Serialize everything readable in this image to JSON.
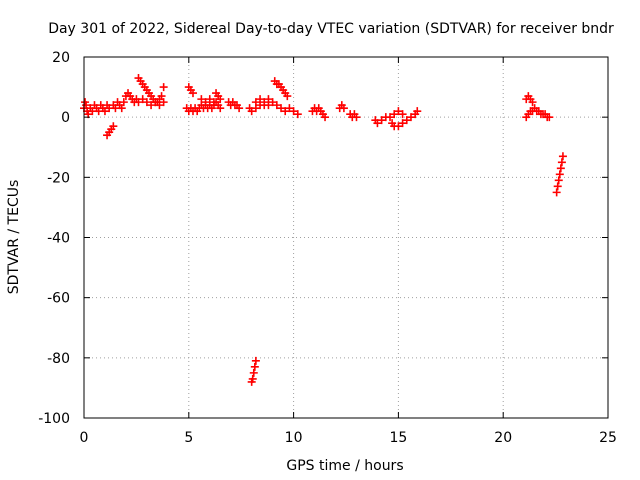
{
  "chart_data": {
    "type": "scatter",
    "title": "Day 301 of 2022, Sidereal Day-to-day VTEC variation (SDTVAR) for receiver bndr",
    "xlabel": "GPS time / hours",
    "ylabel": "SDTVAR / TECUs",
    "xlim": [
      0,
      25
    ],
    "ylim": [
      -100,
      20
    ],
    "xticks": [
      0,
      5,
      10,
      15,
      20,
      25
    ],
    "yticks": [
      -100,
      -80,
      -60,
      -40,
      -20,
      0,
      20
    ],
    "grid": true,
    "marker": "+",
    "marker_color": "#ff0000",
    "series": [
      {
        "name": "SDTVAR",
        "segments": [
          [
            [
              0.0,
              3
            ],
            [
              0.05,
              5
            ],
            [
              0.1,
              4
            ],
            [
              0.15,
              2
            ],
            [
              0.2,
              1
            ],
            [
              0.3,
              3
            ],
            [
              0.4,
              2
            ],
            [
              0.5,
              4
            ],
            [
              0.6,
              3
            ],
            [
              0.7,
              2
            ],
            [
              0.8,
              4
            ],
            [
              0.9,
              3
            ],
            [
              1.0,
              2
            ],
            [
              1.1,
              4
            ],
            [
              1.2,
              3
            ]
          ],
          [
            [
              1.1,
              -6
            ],
            [
              1.2,
              -5
            ],
            [
              1.3,
              -4
            ],
            [
              1.4,
              -3
            ]
          ],
          [
            [
              1.4,
              4
            ],
            [
              1.5,
              3
            ],
            [
              1.6,
              5
            ],
            [
              1.7,
              4
            ],
            [
              1.8,
              3
            ]
          ],
          [
            [
              1.9,
              5
            ],
            [
              2.0,
              7
            ],
            [
              2.1,
              8
            ],
            [
              2.2,
              7
            ],
            [
              2.3,
              6
            ],
            [
              2.4,
              5
            ],
            [
              2.5,
              6
            ]
          ],
          [
            [
              2.6,
              13
            ],
            [
              2.7,
              12
            ],
            [
              2.8,
              11
            ],
            [
              2.9,
              10
            ],
            [
              3.0,
              9
            ],
            [
              3.1,
              8
            ],
            [
              3.2,
              7
            ],
            [
              3.3,
              6
            ],
            [
              3.4,
              5
            ],
            [
              3.5,
              5
            ],
            [
              3.6,
              6
            ],
            [
              3.7,
              7
            ],
            [
              3.8,
              10
            ]
          ],
          [
            [
              2.6,
              5
            ],
            [
              2.8,
              6
            ],
            [
              3.0,
              5
            ],
            [
              3.2,
              4
            ],
            [
              3.4,
              5
            ],
            [
              3.6,
              4
            ],
            [
              3.8,
              5
            ]
          ],
          [
            [
              4.9,
              3
            ],
            [
              5.0,
              2
            ],
            [
              5.1,
              3
            ],
            [
              5.2,
              2
            ],
            [
              5.3,
              3
            ],
            [
              5.4,
              2
            ],
            [
              5.5,
              3
            ],
            [
              5.6,
              4
            ],
            [
              5.7,
              3
            ],
            [
              5.8,
              4
            ],
            [
              5.9,
              3
            ],
            [
              6.0,
              4
            ],
            [
              6.1,
              3
            ],
            [
              6.2,
              4
            ],
            [
              6.3,
              5
            ],
            [
              6.4,
              4
            ],
            [
              6.5,
              3
            ]
          ],
          [
            [
              5.0,
              10
            ],
            [
              5.1,
              9
            ],
            [
              5.2,
              8
            ]
          ],
          [
            [
              5.6,
              6
            ],
            [
              5.8,
              5
            ],
            [
              6.0,
              6
            ],
            [
              6.2,
              5
            ]
          ],
          [
            [
              6.3,
              8
            ],
            [
              6.4,
              7
            ],
            [
              6.5,
              6
            ]
          ],
          [
            [
              6.9,
              5
            ],
            [
              7.0,
              4
            ],
            [
              7.1,
              5
            ],
            [
              7.2,
              4
            ],
            [
              7.3,
              4
            ],
            [
              7.4,
              3
            ]
          ],
          [
            [
              7.9,
              3
            ],
            [
              8.0,
              2
            ],
            [
              8.2,
              3
            ],
            [
              8.4,
              4
            ],
            [
              8.6,
              5
            ],
            [
              8.8,
              6
            ],
            [
              9.0,
              5
            ],
            [
              9.2,
              4
            ],
            [
              9.4,
              3
            ],
            [
              9.6,
              2
            ],
            [
              9.8,
              3
            ],
            [
              10.0,
              2
            ],
            [
              10.2,
              1
            ]
          ],
          [
            [
              8.2,
              5
            ],
            [
              8.4,
              6
            ],
            [
              8.6,
              4
            ],
            [
              8.8,
              4
            ]
          ],
          [
            [
              9.1,
              12
            ],
            [
              9.2,
              11
            ],
            [
              9.3,
              11
            ],
            [
              9.4,
              10
            ],
            [
              9.5,
              9
            ],
            [
              9.6,
              8
            ],
            [
              9.7,
              7
            ]
          ],
          [
            [
              10.9,
              2
            ],
            [
              11.0,
              3
            ],
            [
              11.1,
              2
            ],
            [
              11.2,
              3
            ],
            [
              11.3,
              2
            ],
            [
              11.4,
              1
            ],
            [
              11.5,
              0
            ]
          ],
          [
            [
              12.2,
              3
            ],
            [
              12.3,
              4
            ],
            [
              12.4,
              3
            ]
          ],
          [
            [
              12.7,
              1
            ],
            [
              12.8,
              0
            ],
            [
              12.9,
              1
            ],
            [
              13.0,
              0
            ]
          ],
          [
            [
              13.9,
              -1
            ],
            [
              14.0,
              -2
            ],
            [
              14.2,
              -1
            ],
            [
              14.4,
              0
            ],
            [
              14.6,
              0
            ],
            [
              14.8,
              1
            ],
            [
              15.0,
              2
            ],
            [
              15.2,
              1
            ]
          ],
          [
            [
              14.7,
              -2
            ],
            [
              14.8,
              -3
            ],
            [
              15.0,
              -3
            ],
            [
              15.2,
              -2
            ],
            [
              15.4,
              -1
            ],
            [
              15.6,
              0
            ],
            [
              15.8,
              1
            ],
            [
              15.9,
              2
            ]
          ],
          [
            [
              8.0,
              -88
            ],
            [
              8.05,
              -87
            ],
            [
              8.1,
              -85
            ],
            [
              8.15,
              -83
            ],
            [
              8.2,
              -81
            ]
          ],
          [
            [
              21.1,
              6
            ],
            [
              21.2,
              7
            ],
            [
              21.3,
              6
            ],
            [
              21.4,
              5
            ]
          ],
          [
            [
              21.1,
              0
            ],
            [
              21.2,
              1
            ],
            [
              21.3,
              2
            ],
            [
              21.4,
              2
            ],
            [
              21.5,
              3
            ],
            [
              21.6,
              2
            ],
            [
              21.7,
              2
            ],
            [
              21.8,
              1
            ],
            [
              21.9,
              1
            ],
            [
              22.0,
              1
            ],
            [
              22.1,
              0
            ],
            [
              22.2,
              0
            ]
          ],
          [
            [
              22.55,
              -25
            ],
            [
              22.6,
              -23
            ],
            [
              22.65,
              -21
            ],
            [
              22.7,
              -19
            ],
            [
              22.75,
              -17
            ],
            [
              22.8,
              -15
            ],
            [
              22.85,
              -13
            ]
          ]
        ]
      }
    ]
  }
}
